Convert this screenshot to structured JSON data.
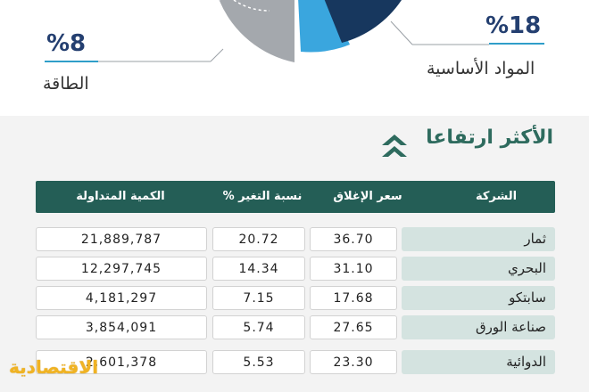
{
  "pie": {
    "labels": [
      {
        "percent": "%8",
        "category": "الطاقة"
      },
      {
        "percent": "%18",
        "category": "المواد الأساسية"
      }
    ],
    "colors": {
      "light_gray": "#cfd2d6",
      "gray": "#9fa3a8",
      "light_blue": "#3aa6de",
      "navy": "#17375e",
      "accent_line": "#2f9ec9"
    }
  },
  "section": {
    "title": "الأكثر ارتفاعا",
    "icon": "double-chevron-up-icon",
    "accent": "#2e6b5e"
  },
  "table": {
    "headers": {
      "company": "الشركة",
      "close": "سعر الإغلاق",
      "change": "نسبة التغير %",
      "volume": "الكمية المتداولة"
    },
    "header_color": "#245e56"
  },
  "chart_data": {
    "type": "table",
    "title": "الأكثر ارتفاعا",
    "columns": [
      "الشركة",
      "سعر الإغلاق",
      "نسبة التغير %",
      "الكمية المتداولة"
    ],
    "rows": [
      {
        "company": "ثمار",
        "close": "36.70",
        "change": "20.72",
        "volume": "21,889,787"
      },
      {
        "company": "البحري",
        "close": "31.10",
        "change": "14.34",
        "volume": "12,297,745"
      },
      {
        "company": "سابتكو",
        "close": "17.68",
        "change": "7.15",
        "volume": "4,181,297"
      },
      {
        "company": "صناعة الورق",
        "close": "27.65",
        "change": "5.74",
        "volume": "3,854,091"
      },
      {
        "company": "الدوائية",
        "close": "23.30",
        "change": "5.53",
        "volume": "2,601,378"
      }
    ]
  },
  "logo": {
    "text": "الاقتصادية",
    "color": "#f0b323"
  }
}
